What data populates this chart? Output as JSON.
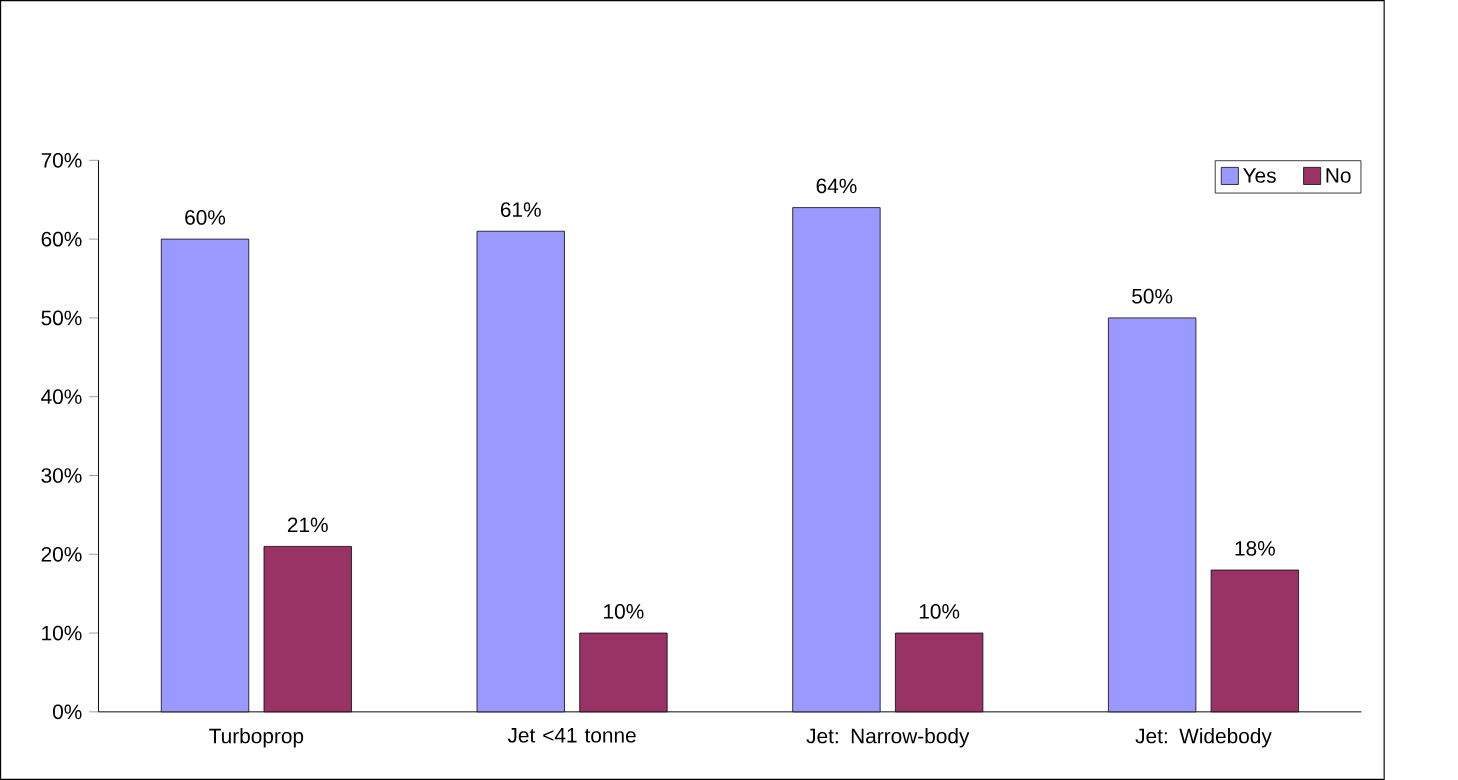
{
  "chart_data": {
    "type": "bar",
    "categories": [
      "Turboprop",
      "Jet <41 tonne",
      "Jet: Narrow-body",
      "Jet: Widebody"
    ],
    "series": [
      {
        "name": "Yes",
        "color": "#9999ff",
        "values": [
          60,
          61,
          64,
          50
        ],
        "value_labels": [
          "60%",
          "61%",
          "64%",
          "50%"
        ]
      },
      {
        "name": "No",
        "color": "#993366",
        "values": [
          21,
          10,
          10,
          18
        ],
        "value_labels": [
          "21%",
          "10%",
          "10%",
          "18%"
        ]
      }
    ],
    "ylim": [
      0,
      70
    ],
    "yticks": [
      {
        "value": 0,
        "label": "0%"
      },
      {
        "value": 10,
        "label": "10%"
      },
      {
        "value": 20,
        "label": "20%"
      },
      {
        "value": 30,
        "label": "30%"
      },
      {
        "value": 40,
        "label": "40%"
      },
      {
        "value": 50,
        "label": "50%"
      },
      {
        "value": 60,
        "label": "60%"
      },
      {
        "value": 70,
        "label": "70%"
      }
    ],
    "grid": false,
    "legend": "top right"
  }
}
